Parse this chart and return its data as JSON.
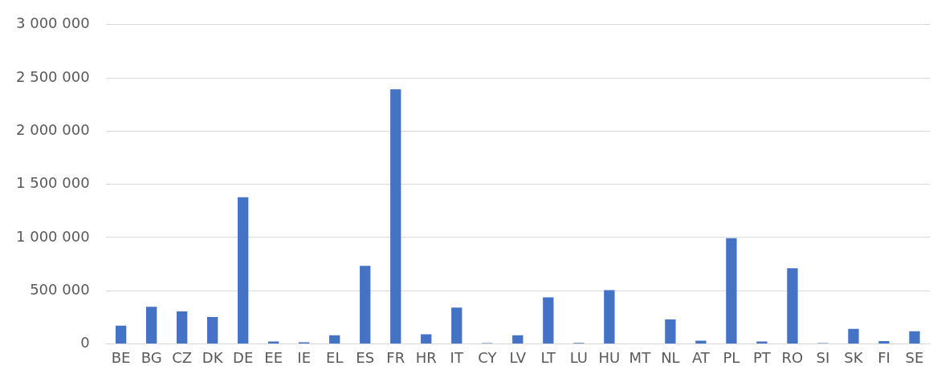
{
  "chart_data": {
    "type": "bar",
    "categories": [
      "BE",
      "BG",
      "CZ",
      "DK",
      "DE",
      "EE",
      "IE",
      "EL",
      "ES",
      "FR",
      "HR",
      "IT",
      "CY",
      "LV",
      "LT",
      "LU",
      "HU",
      "MT",
      "NL",
      "AT",
      "PL",
      "PT",
      "RO",
      "SI",
      "SK",
      "FI",
      "SE"
    ],
    "values": [
      170000,
      348000,
      304000,
      252000,
      1378000,
      22000,
      15000,
      81000,
      733000,
      2393000,
      89000,
      341000,
      7000,
      81000,
      437000,
      8000,
      504000,
      null,
      230000,
      30000,
      993000,
      22000,
      711000,
      7000,
      141000,
      25000,
      118000
    ],
    "color": "#4472c4",
    "ylim": [
      0,
      3000000
    ],
    "yticks": [
      {
        "value": 0,
        "label": "0"
      },
      {
        "value": 500000,
        "label": "500 000"
      },
      {
        "value": 1000000,
        "label": "1 000 000"
      },
      {
        "value": 1500000,
        "label": "1 500 000"
      },
      {
        "value": 2000000,
        "label": "2 000 000"
      },
      {
        "value": 2500000,
        "label": "2 500 000"
      },
      {
        "value": 3000000,
        "label": "3 000 000"
      }
    ],
    "grid": "y"
  }
}
